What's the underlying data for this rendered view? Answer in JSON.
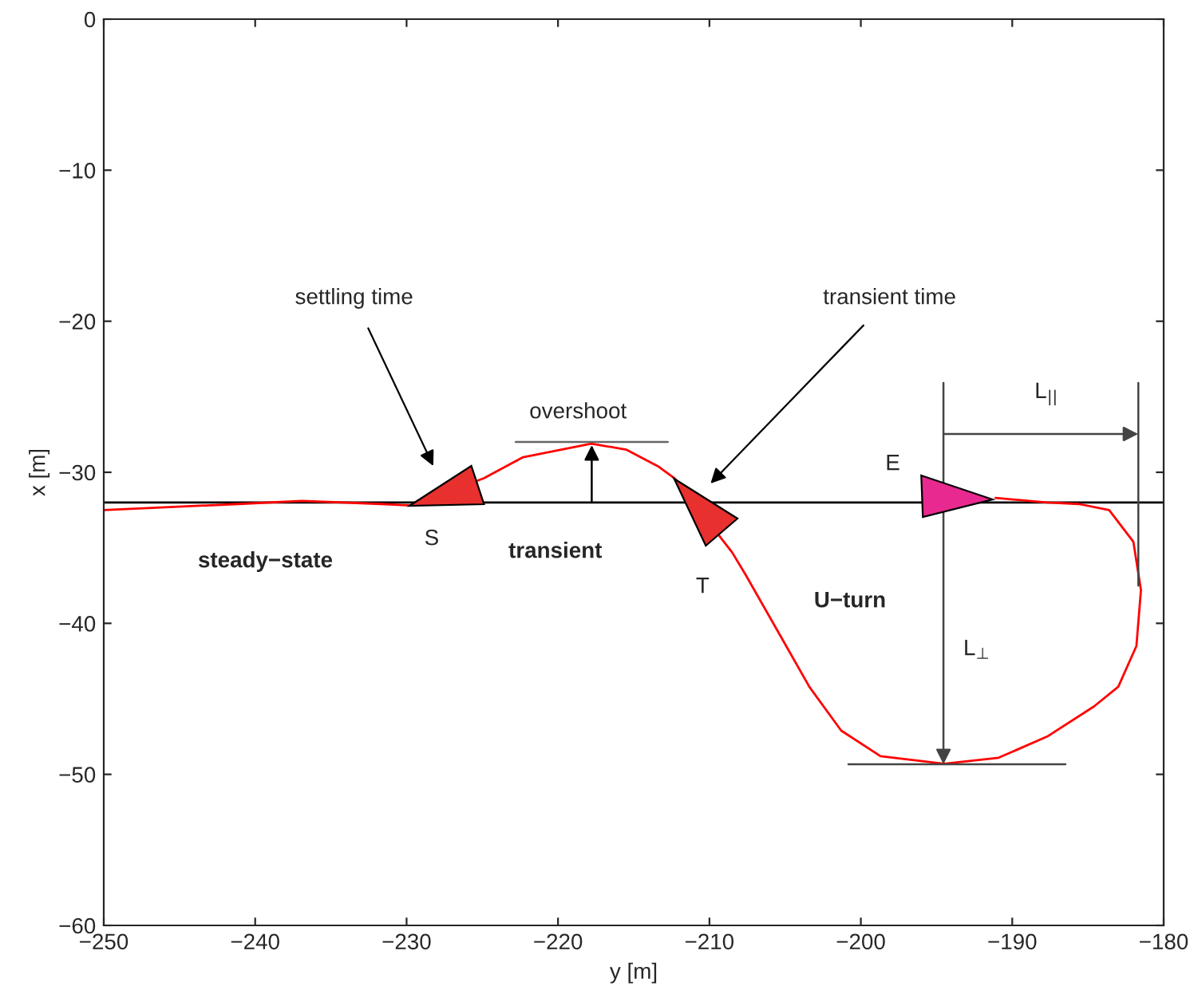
{
  "chart_data": {
    "type": "line",
    "xlabel": "y [m]",
    "ylabel": "x [m]",
    "xlim": [
      -250,
      -180
    ],
    "xticks": [
      -250,
      -240,
      -230,
      -220,
      -210,
      -200,
      -190,
      -180
    ],
    "ylim": [
      -60,
      0
    ],
    "yticks": [
      -60,
      -50,
      -40,
      -30,
      -20,
      -10,
      0
    ],
    "grid": false,
    "legend": false,
    "marker": "none",
    "line_style": "solid",
    "series": [
      {
        "color": "#ff0000",
        "x": [
          -250,
          -241.1,
          -236.9,
          -231.7,
          -229.6,
          -224.9,
          -222.3,
          -217.8,
          -215.5,
          -213.4,
          -212.3,
          -208.5,
          -207.6,
          -205.5,
          -203.4,
          -201.3,
          -198.7,
          -194.5,
          -190.9,
          -187.7,
          -184.6,
          -183.0,
          -181.8,
          -181.5,
          -182.0,
          -183.6,
          -185.6,
          -187.7,
          -191.1
        ],
        "values": [
          -32.5,
          -32.1,
          -31.9,
          -32.1,
          -32.2,
          -30.4,
          -29.0,
          -28.1,
          -28.5,
          -29.6,
          -30.4,
          -35.3,
          -36.8,
          -40.5,
          -44.2,
          -47.1,
          -48.8,
          -49.3,
          -48.9,
          -47.5,
          -45.5,
          -44.2,
          -41.5,
          -37.8,
          -34.6,
          -32.5,
          -32.1,
          -32.0,
          -31.7
        ]
      }
    ],
    "ref_lines": [
      {
        "axis": "y",
        "value": -32,
        "color": "#000000"
      }
    ],
    "annotations": [
      "settling time",
      "transient time",
      {
        "text": "overshoot",
        "x": -217.8,
        "y": -28.1
      },
      "steady−state",
      "transient",
      "U−turn",
      "S",
      "T",
      "E",
      "L$_{||}$",
      "L$_{⊥}$"
    ]
  }
}
